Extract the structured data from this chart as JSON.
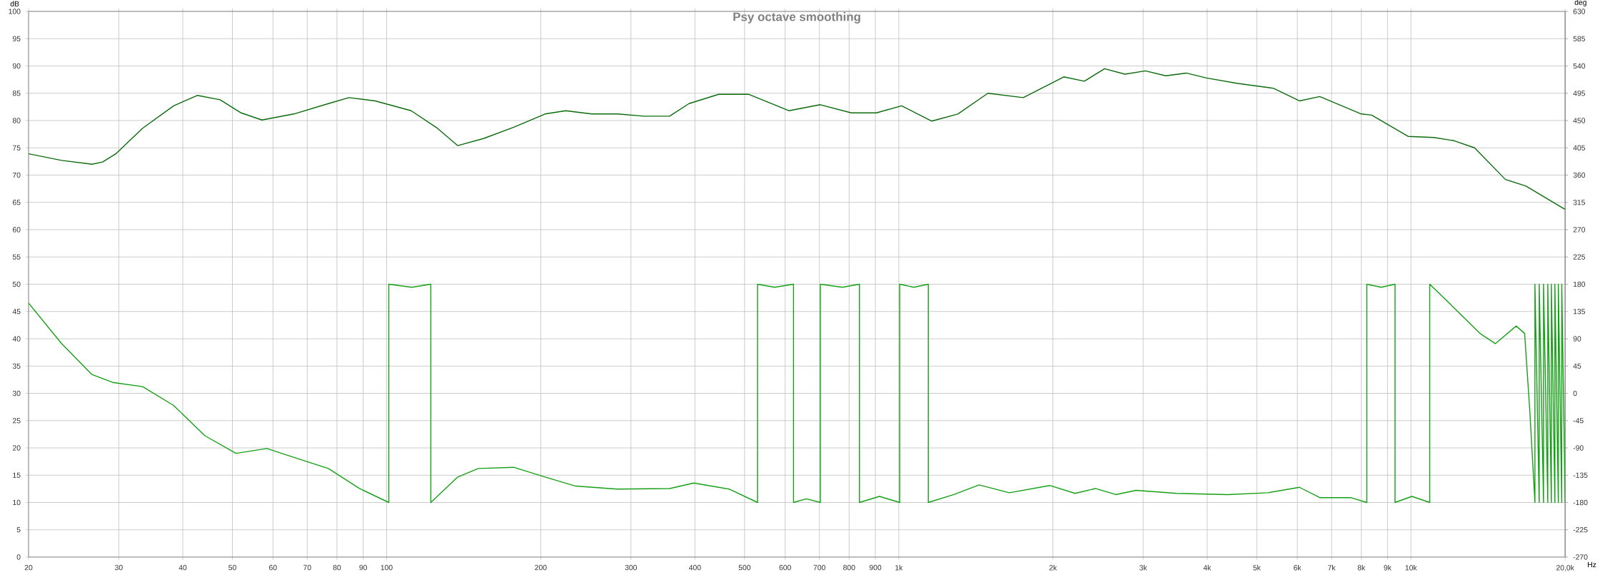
{
  "chart_data": {
    "type": "line",
    "title": "Psy octave smoothing",
    "xlabel": "Hz",
    "ylabel": "dB",
    "y2label": "deg",
    "log": "x",
    "grid": true,
    "marker": "none",
    "xlim": [
      20,
      20000
    ],
    "ylim": [
      0,
      100
    ],
    "y2lim": [
      -270,
      630
    ],
    "xticks": [
      20,
      30,
      40,
      50,
      60,
      70,
      80,
      90,
      100,
      200,
      300,
      400,
      500,
      600,
      700,
      800,
      900,
      {
        "value": 1000,
        "label": "1k"
      },
      {
        "value": 2000,
        "label": "2k"
      },
      {
        "value": 3000,
        "label": "3k"
      },
      {
        "value": 4000,
        "label": "4k"
      },
      {
        "value": 5000,
        "label": "5k"
      },
      {
        "value": 6000,
        "label": "6k"
      },
      {
        "value": 7000,
        "label": "7k"
      },
      {
        "value": 8000,
        "label": "8k"
      },
      {
        "value": 9000,
        "label": "9k"
      },
      {
        "value": 10000,
        "label": "10k"
      },
      {
        "value": 20000,
        "label": "20,0k"
      }
    ],
    "yticks": [
      0,
      5,
      10,
      15,
      20,
      25,
      30,
      35,
      40,
      45,
      50,
      55,
      60,
      65,
      70,
      75,
      80,
      85,
      90,
      95,
      100
    ],
    "y2ticks": [
      -270,
      -225,
      -180,
      -135,
      -90,
      -45,
      0,
      45,
      90,
      135,
      180,
      225,
      270,
      315,
      360,
      405,
      450,
      495,
      540,
      585,
      630
    ],
    "series": [
      {
        "color": "#0b6b0b",
        "x": [
          20,
          23.2,
          26.6,
          27.9,
          29.6,
          33.4,
          38.4,
          42.7,
          47.3,
          52,
          57.1,
          65.9,
          77,
          84.4,
          95,
          111.7,
          125.6,
          137.7,
          154.6,
          177.5,
          203.9,
          223.7,
          251.4,
          282.5,
          317.6,
          356.9,
          389.5,
          444.8,
          509.8,
          610,
          703,
          808,
          904,
          1013,
          1160,
          1304,
          1493,
          1750,
          2100,
          2302,
          2522,
          2765,
          3030,
          3322,
          3641,
          3991,
          4590,
          5394,
          6057,
          6638,
          8000,
          8380,
          9870,
          11070,
          12140,
          13310,
          15290,
          16770,
          20000
        ],
        "values": [
          73.9,
          72.7,
          72,
          72.4,
          73.9,
          78.6,
          82.7,
          84.6,
          83.8,
          81.4,
          80.1,
          81.2,
          83.1,
          84.2,
          83.6,
          81.8,
          78.6,
          75.4,
          76.7,
          78.8,
          81.2,
          81.8,
          81.2,
          81.2,
          80.8,
          80.8,
          83.1,
          84.8,
          84.8,
          81.8,
          82.9,
          81.4,
          81.4,
          82.7,
          79.9,
          81.2,
          85,
          84.2,
          88,
          87.2,
          89.5,
          88.5,
          89.1,
          88.2,
          88.7,
          87.8,
          86.8,
          85.9,
          83.6,
          84.4,
          81.2,
          81,
          77.1,
          76.9,
          76.3,
          75,
          69.2,
          68,
          63.7
        ]
      },
      {
        "color": "#14a014",
        "axis": "y2",
        "x": [
          20,
          23.2,
          26.6,
          29.2,
          33.4,
          38.4,
          44.2,
          50.8,
          58.4,
          67.3,
          77,
          88.5,
          101,
          101,
          112,
          122,
          122,
          137.7,
          151,
          177,
          204,
          234,
          282,
          357,
          398,
          467,
          530,
          530,
          572,
          623,
          623,
          660,
          703,
          703,
          776,
          838,
          838,
          917,
          1004,
          1004,
          1070,
          1142,
          1142,
          1281,
          1435,
          1644,
          1971,
          2209,
          2420,
          2652,
          2907,
          3488,
          4385,
          5256,
          6057,
          6638,
          7620,
          8200,
          8200,
          8750,
          9310,
          9310,
          10040,
          10880,
          10880,
          12140,
          13630,
          14620,
          16050,
          16670,
          17060,
          17460,
          17460,
          17800,
          17800,
          18150,
          18150,
          18500,
          18500,
          18800,
          18800,
          19100,
          19100,
          19400,
          19400,
          19700,
          19700,
          20000
        ],
        "values": [
          149,
          82,
          31,
          18,
          11,
          -20,
          -70,
          -99,
          -91,
          -108,
          -124,
          -157,
          -180,
          180,
          175,
          180,
          -180,
          -138,
          -124,
          -122,
          -138,
          -153,
          -158,
          -157,
          -148,
          -158,
          -180,
          180,
          175,
          180,
          -180,
          -174,
          -180,
          180,
          175,
          180,
          -180,
          -170,
          -180,
          180,
          175,
          180,
          -180,
          -167,
          -151,
          -164,
          -152,
          -165,
          -157,
          -167,
          -160,
          -165,
          -167,
          -164,
          -155,
          -172,
          -172,
          -180,
          180,
          175,
          180,
          -180,
          -170,
          -180,
          180,
          141,
          99,
          82,
          111,
          99,
          -28,
          -180,
          180,
          -180,
          180,
          -180,
          180,
          -180,
          180,
          -180,
          180,
          -180,
          180,
          -180,
          180,
          -180,
          180,
          -180
        ]
      }
    ]
  }
}
